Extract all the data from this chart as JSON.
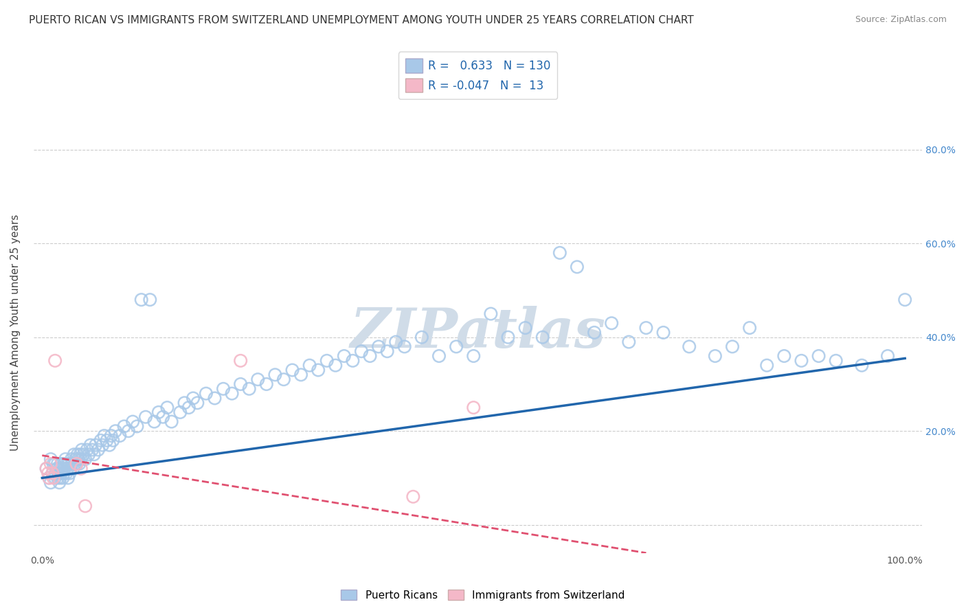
{
  "title": "PUERTO RICAN VS IMMIGRANTS FROM SWITZERLAND UNEMPLOYMENT AMONG YOUTH UNDER 25 YEARS CORRELATION CHART",
  "source": "Source: ZipAtlas.com",
  "ylabel": "Unemployment Among Youth under 25 years",
  "xlim": [
    -0.01,
    1.02
  ],
  "ylim": [
    -0.06,
    0.88
  ],
  "ytick_vals": [
    0.0,
    0.2,
    0.4,
    0.6,
    0.8
  ],
  "yticklabels_right": [
    "",
    "20.0%",
    "40.0%",
    "60.0%",
    "80.0%"
  ],
  "xticklabel_left": "0.0%",
  "xticklabel_right": "100.0%",
  "blue_color": "#A8C8E8",
  "blue_edge_color": "#6aaad4",
  "pink_color": "#F4B8C8",
  "pink_edge_color": "#e08098",
  "blue_line_color": "#2166AC",
  "pink_line_color": "#E05070",
  "watermark_color": "#d0dce8",
  "title_fontsize": 11,
  "source_fontsize": 9,
  "axis_label_fontsize": 11,
  "tick_fontsize": 10,
  "right_tick_color": "#4488cc",
  "blue_x": [
    0.005,
    0.008,
    0.01,
    0.01,
    0.012,
    0.013,
    0.015,
    0.015,
    0.016,
    0.017,
    0.018,
    0.018,
    0.019,
    0.02,
    0.02,
    0.021,
    0.022,
    0.022,
    0.023,
    0.024,
    0.025,
    0.025,
    0.026,
    0.027,
    0.028,
    0.029,
    0.03,
    0.03,
    0.031,
    0.032,
    0.033,
    0.034,
    0.035,
    0.036,
    0.037,
    0.038,
    0.039,
    0.04,
    0.041,
    0.042,
    0.043,
    0.044,
    0.045,
    0.046,
    0.048,
    0.05,
    0.052,
    0.054,
    0.056,
    0.058,
    0.06,
    0.062,
    0.065,
    0.068,
    0.07,
    0.072,
    0.075,
    0.078,
    0.08,
    0.082,
    0.085,
    0.09,
    0.095,
    0.1,
    0.105,
    0.11,
    0.115,
    0.12,
    0.125,
    0.13,
    0.135,
    0.14,
    0.145,
    0.15,
    0.16,
    0.165,
    0.17,
    0.175,
    0.18,
    0.19,
    0.2,
    0.21,
    0.22,
    0.23,
    0.24,
    0.25,
    0.26,
    0.27,
    0.28,
    0.29,
    0.3,
    0.31,
    0.32,
    0.33,
    0.34,
    0.35,
    0.36,
    0.37,
    0.38,
    0.39,
    0.4,
    0.41,
    0.42,
    0.44,
    0.46,
    0.48,
    0.5,
    0.52,
    0.54,
    0.56,
    0.58,
    0.6,
    0.62,
    0.64,
    0.66,
    0.68,
    0.7,
    0.72,
    0.75,
    0.78,
    0.8,
    0.82,
    0.84,
    0.86,
    0.88,
    0.9,
    0.92,
    0.95,
    0.98,
    1.0
  ],
  "blue_y": [
    0.12,
    0.1,
    0.09,
    0.14,
    0.11,
    0.13,
    0.1,
    0.13,
    0.11,
    0.12,
    0.1,
    0.13,
    0.11,
    0.09,
    0.12,
    0.1,
    0.11,
    0.13,
    0.12,
    0.1,
    0.11,
    0.13,
    0.12,
    0.14,
    0.11,
    0.13,
    0.1,
    0.12,
    0.13,
    0.11,
    0.12,
    0.14,
    0.13,
    0.12,
    0.15,
    0.13,
    0.14,
    0.13,
    0.15,
    0.14,
    0.13,
    0.15,
    0.14,
    0.16,
    0.15,
    0.14,
    0.16,
    0.15,
    0.17,
    0.16,
    0.15,
    0.17,
    0.16,
    0.18,
    0.17,
    0.19,
    0.18,
    0.17,
    0.19,
    0.18,
    0.2,
    0.19,
    0.21,
    0.2,
    0.22,
    0.21,
    0.48,
    0.23,
    0.48,
    0.22,
    0.24,
    0.23,
    0.25,
    0.22,
    0.24,
    0.26,
    0.25,
    0.27,
    0.26,
    0.28,
    0.27,
    0.29,
    0.28,
    0.3,
    0.29,
    0.31,
    0.3,
    0.32,
    0.31,
    0.33,
    0.32,
    0.34,
    0.33,
    0.35,
    0.34,
    0.36,
    0.35,
    0.37,
    0.36,
    0.38,
    0.37,
    0.39,
    0.38,
    0.4,
    0.36,
    0.38,
    0.36,
    0.45,
    0.4,
    0.42,
    0.4,
    0.58,
    0.55,
    0.41,
    0.43,
    0.39,
    0.42,
    0.41,
    0.38,
    0.36,
    0.38,
    0.42,
    0.34,
    0.36,
    0.35,
    0.36,
    0.35,
    0.34,
    0.36,
    0.48
  ],
  "pink_x": [
    0.005,
    0.007,
    0.008,
    0.01,
    0.012,
    0.013,
    0.015,
    0.04,
    0.045,
    0.05,
    0.23,
    0.43,
    0.5
  ],
  "pink_y": [
    0.12,
    0.11,
    0.1,
    0.13,
    0.11,
    0.1,
    0.35,
    0.13,
    0.12,
    0.04,
    0.35,
    0.06,
    0.25
  ]
}
